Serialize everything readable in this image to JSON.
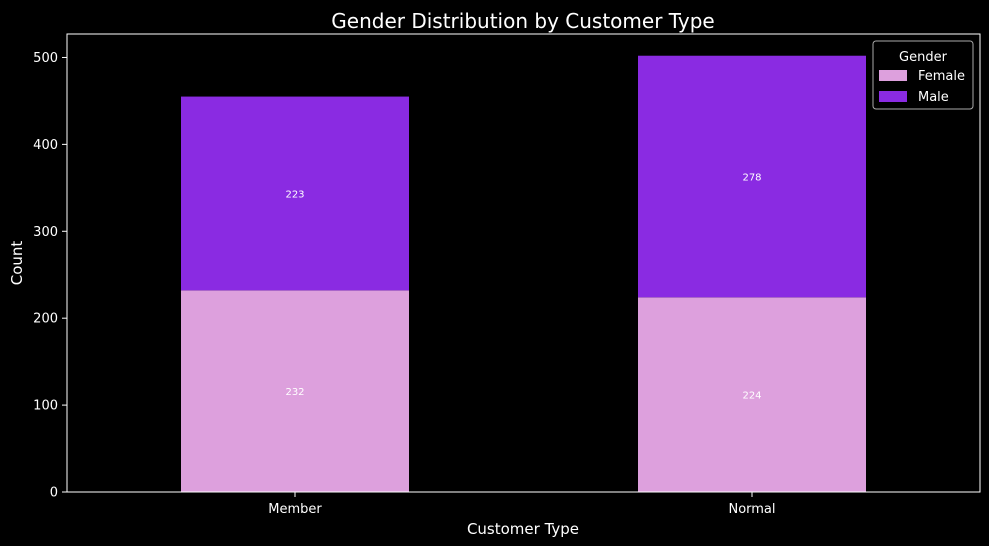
{
  "chart_data": {
    "type": "bar",
    "stacked": true,
    "title": "Gender Distribution by Customer Type",
    "xlabel": "Customer Type",
    "ylabel": "Count",
    "categories": [
      "Member",
      "Normal"
    ],
    "series": [
      {
        "name": "Female",
        "values": [
          232,
          224
        ],
        "color": "#dda0dd"
      },
      {
        "name": "Male",
        "values": [
          223,
          278
        ],
        "color": "#8a2be2"
      }
    ],
    "ylim": [
      0,
      527
    ],
    "yticks": [
      0,
      100,
      200,
      300,
      400,
      500
    ],
    "grid": false,
    "legend": {
      "title": "Gender",
      "placement": "top-right"
    },
    "data_labels": true,
    "background": "#000000",
    "text_color": "#ffffff"
  }
}
